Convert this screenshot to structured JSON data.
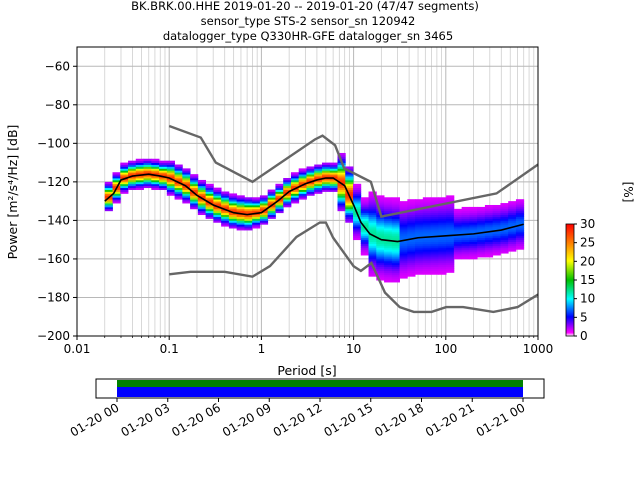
{
  "header": {
    "line1": "BK.BRK.00.HHE   2019-01-20 -- 2019-01-20  (47/47 segments)",
    "line2": "sensor_type STS-2 sensor_sn 120942",
    "line3": "datalogger_type Q330HR-GFE datalogger_sn 3465"
  },
  "chart_data": {
    "type": "heatmap",
    "xlabel": "Period [s]",
    "ylabel": "Power [m²/s⁴/Hz] [dB]",
    "xscale": "log",
    "xlim": [
      0.01,
      1000
    ],
    "ylim": [
      -200,
      -50
    ],
    "x_ticks": [
      0.01,
      0.1,
      1,
      10,
      100,
      1000
    ],
    "x_tick_labels": [
      "0.01",
      "0.1",
      "1",
      "10",
      "100",
      "1000"
    ],
    "y_ticks": [
      -200,
      -180,
      -160,
      -140,
      -120,
      -100,
      -80,
      -60
    ],
    "y_tick_labels": [
      "−200",
      "−180",
      "−160",
      "−140",
      "−120",
      "−100",
      "−80",
      "−60"
    ],
    "grid": true,
    "noise_models": {
      "high": {
        "x": [
          0.1,
          0.22,
          0.32,
          0.8,
          3.8,
          4.6,
          6.3,
          7.9,
          15.4,
          20,
          354.8,
          1000
        ],
        "y": [
          -91,
          -97,
          -110,
          -120,
          -98,
          -96,
          -101,
          -113,
          -120,
          -138,
          -126,
          -111
        ]
      },
      "low": {
        "x": [
          0.1,
          0.17,
          0.4,
          0.8,
          1.24,
          2.4,
          4.3,
          5.0,
          6.0,
          10.0,
          12.0,
          15.6,
          21.9,
          31.6,
          45.0,
          70.0,
          101.0,
          154.0,
          328.0,
          600.0,
          1000
        ]
      },
      "low_y": [
        -168,
        -166.7,
        -166.7,
        -169.2,
        -163.7,
        -148.6,
        -141.1,
        -141.1,
        -149.0,
        -163.8,
        -166.2,
        -162.1,
        -177.5,
        -185.0,
        -187.5,
        -187.5,
        -185.0,
        -185.0,
        -187.5,
        -185.0,
        -178.5
      ]
    },
    "mode": {
      "x": [
        0.02,
        0.025,
        0.03,
        0.04,
        0.06,
        0.08,
        0.1,
        0.15,
        0.2,
        0.3,
        0.5,
        0.7,
        1,
        1.5,
        2,
        3,
        4,
        5,
        6,
        8,
        10,
        12,
        15,
        20,
        30,
        50,
        100,
        200,
        400,
        700
      ],
      "y": [
        -130,
        -126,
        -119,
        -117,
        -116,
        -117,
        -118,
        -122,
        -127,
        -132,
        -136,
        -137,
        -136,
        -130,
        -125,
        -121,
        -119,
        -118,
        -118,
        -122,
        -132,
        -141,
        -147,
        -150,
        -151,
        -149,
        -148,
        -147,
        -145,
        -142
      ]
    },
    "colorbar": {
      "label": "[%]",
      "range": [
        0,
        30
      ],
      "ticks": [
        0,
        5,
        10,
        15,
        20,
        25,
        30
      ],
      "tick_labels": [
        "0",
        "5",
        "10",
        "15",
        "20",
        "25",
        "30"
      ]
    },
    "timeline": {
      "tick_labels": [
        "01-20 00",
        "01-20 03",
        "01-20 06",
        "01-20 09",
        "01-20 12",
        "01-20 15",
        "01-20 18",
        "01-20 21",
        "01-21 00"
      ],
      "coverage": [
        0,
        24
      ],
      "colors": {
        "data": "#0000ff",
        "psd": "#008000"
      }
    }
  }
}
